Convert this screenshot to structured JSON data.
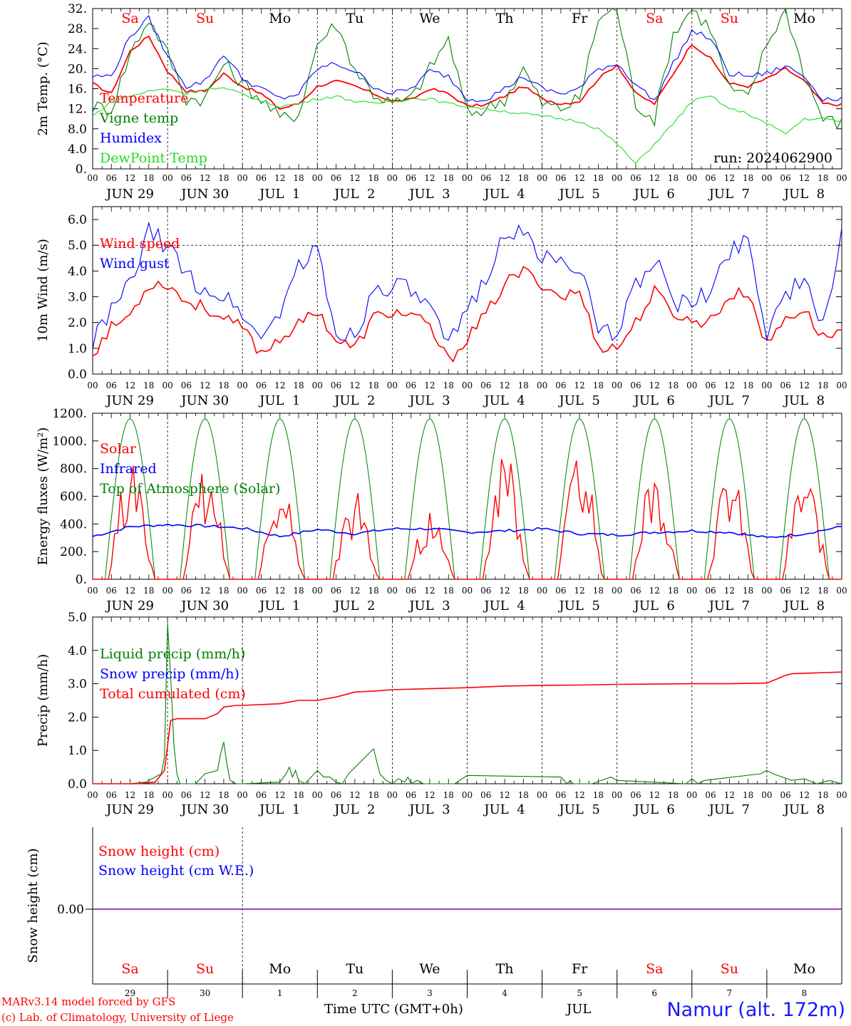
{
  "run_label": "run: 2024062900",
  "days": [
    {
      "abbr": "Sa",
      "weekend": true,
      "date_label": "JUN 29",
      "num": "29"
    },
    {
      "abbr": "Su",
      "weekend": true,
      "date_label": "JUN 30",
      "num": "30"
    },
    {
      "abbr": "Mo",
      "weekend": false,
      "date_label": "JUL  1",
      "num": "1"
    },
    {
      "abbr": "Tu",
      "weekend": false,
      "date_label": "JUL  2",
      "num": "2"
    },
    {
      "abbr": "We",
      "weekend": false,
      "date_label": "JUL  3",
      "num": "3"
    },
    {
      "abbr": "Th",
      "weekend": false,
      "date_label": "JUL  4",
      "num": "4"
    },
    {
      "abbr": "Fr",
      "weekend": false,
      "date_label": "JUL  5",
      "num": "5"
    },
    {
      "abbr": "Sa",
      "weekend": true,
      "date_label": "JUL  6",
      "num": "6"
    },
    {
      "abbr": "Su",
      "weekend": true,
      "date_label": "JUL  7",
      "num": "7"
    },
    {
      "abbr": "Mo",
      "weekend": false,
      "date_label": "JUL  8",
      "num": "8"
    }
  ],
  "hour_ticks": [
    "00",
    "06",
    "12",
    "18"
  ],
  "last_hour_tick": "00",
  "x_axis_month": "JUL",
  "x_axis_title": "Time UTC (GMT+0h)",
  "credit_line_1": "MARv3.14 model forced by GFS",
  "credit_line_2": "(c) Lab. of Climatology, University of Liege",
  "station_label": "Namur (alt. 172m)",
  "colors": {
    "red": "#ff0000",
    "green": "#008000",
    "blue": "#0000ff",
    "lightgreen": "#22dd22",
    "purple": "#8000a0",
    "weekend": "#ff0000"
  },
  "chart_data": [
    {
      "id": "temp",
      "type": "line",
      "ylabel": "2m Temp. (°C)",
      "ylim": [
        0,
        32
      ],
      "yticks": [
        0,
        4,
        8,
        12,
        16,
        20,
        24,
        28,
        32
      ],
      "ytick_labels": [
        "0.",
        "4.0",
        "8.0",
        "12.",
        "16.",
        "20.",
        "24.",
        "28.",
        "32."
      ],
      "x_hours": [
        0,
        6,
        12,
        18,
        24,
        30,
        36,
        42,
        48,
        54,
        60,
        66,
        72,
        78,
        84,
        90,
        96,
        102,
        108,
        114,
        120,
        126,
        132,
        138,
        144,
        150,
        156,
        162,
        168,
        174,
        180,
        186,
        192,
        198,
        204,
        210,
        216,
        222,
        228,
        234,
        240
      ],
      "series": [
        {
          "name": "Temperature",
          "color": "#ff0000",
          "values": [
            17,
            15,
            23.5,
            26.5,
            19.5,
            15.5,
            15.5,
            19,
            16.5,
            15,
            12,
            13,
            16.5,
            17.5,
            16.5,
            15,
            13.5,
            13.8,
            16,
            15,
            12.5,
            12.8,
            14.5,
            16.5,
            14,
            13,
            13.5,
            18,
            20.8,
            15,
            13,
            19,
            25,
            22,
            17,
            16.5,
            18,
            20,
            17.5,
            13,
            12.8
          ]
        },
        {
          "name": "Vigne temp",
          "color": "#008000",
          "values": [
            12.5,
            12,
            23,
            30,
            23,
            14,
            14,
            21,
            17,
            14,
            10,
            11,
            25,
            29,
            20,
            15,
            13,
            14,
            20,
            26,
            11,
            12,
            14,
            20,
            13,
            12,
            14,
            30,
            32,
            13,
            10,
            27,
            32,
            28,
            16,
            14,
            25,
            32,
            19,
            10,
            9
          ]
        },
        {
          "name": "Humidex",
          "color": "#0000ff",
          "values": [
            18.5,
            18.5,
            26.5,
            30,
            22.5,
            16.5,
            17.5,
            23,
            18,
            16,
            14,
            15,
            20,
            21,
            19.5,
            16.5,
            15,
            16,
            19.5,
            18.5,
            14,
            14,
            16,
            18.5,
            16,
            15,
            16,
            20,
            21,
            17,
            13.5,
            21,
            27.5,
            26,
            19,
            18.5,
            19,
            20.5,
            18.5,
            14,
            14
          ]
        },
        {
          "name": "DewPoint Temp",
          "color": "#22dd22",
          "values": [
            10.5,
            13.5,
            14.5,
            15.5,
            16,
            15,
            16,
            16,
            15,
            13.5,
            12.5,
            13,
            14,
            14.5,
            13.5,
            13,
            13.5,
            14,
            14,
            13,
            12.5,
            12,
            11.5,
            11,
            10.5,
            10,
            9.5,
            8,
            5,
            1,
            5,
            9,
            13.5,
            14.5,
            12,
            11,
            9,
            7,
            10,
            10,
            9.5
          ]
        }
      ]
    },
    {
      "id": "wind",
      "type": "line",
      "ylabel": "10m Wind (m/s)",
      "ylim": [
        0,
        6.5
      ],
      "yticks": [
        0,
        1,
        2,
        3,
        4,
        5,
        6
      ],
      "ytick_labels": [
        "0.0",
        "1.0",
        "2.0",
        "3.0",
        "4.0",
        "5.0",
        "6.0"
      ],
      "reference_line": 5,
      "x_hours": [
        0,
        6,
        12,
        18,
        24,
        30,
        36,
        42,
        48,
        54,
        60,
        66,
        72,
        78,
        84,
        90,
        96,
        102,
        108,
        114,
        120,
        126,
        132,
        138,
        144,
        150,
        156,
        162,
        168,
        174,
        180,
        186,
        192,
        198,
        204,
        210,
        216,
        222,
        228,
        234,
        240
      ],
      "series": [
        {
          "name": "Wind speed",
          "color": "#ff0000",
          "values": [
            0.8,
            1.8,
            2.3,
            3.5,
            3.5,
            2.8,
            2.6,
            2.1,
            1.8,
            0.8,
            1.4,
            1.9,
            2.5,
            1.3,
            1.0,
            2.2,
            2.4,
            2.3,
            1.8,
            0.5,
            1.4,
            2.3,
            3.5,
            4.0,
            3.5,
            3.0,
            3.2,
            1.1,
            1.0,
            2.0,
            3.2,
            2.4,
            2.0,
            2.1,
            3.0,
            3.2,
            1.1,
            2.2,
            2.5,
            1.4,
            1.7
          ]
        },
        {
          "name": "Wind gust",
          "color": "#0000ff",
          "values": [
            1.3,
            2.4,
            3.5,
            5.5,
            5.0,
            3.8,
            3.3,
            3.0,
            2.4,
            1.3,
            2.5,
            4.2,
            4.8,
            1.5,
            1.6,
            3.2,
            3.5,
            3.2,
            2.5,
            1.0,
            2.5,
            3.8,
            5.5,
            5.4,
            4.6,
            4.3,
            4.3,
            1.5,
            1.6,
            3.5,
            4.5,
            2.8,
            2.7,
            3.2,
            4.8,
            5.3,
            1.6,
            3.2,
            3.5,
            1.8,
            5.6
          ]
        }
      ]
    },
    {
      "id": "energy",
      "type": "line",
      "ylabel": "Energy fluxes (W/m²)",
      "ylim": [
        0,
        1200
      ],
      "yticks": [
        0,
        200,
        400,
        600,
        800,
        1000,
        1200
      ],
      "ytick_labels": [
        "0.",
        "200.",
        "400.",
        "600.",
        "800.",
        "1000.",
        "1200."
      ],
      "toa_solar": {
        "name": "Top of Atmosphere (Solar)",
        "color": "#008000",
        "peak": 1160,
        "sunrise_hour": 4.0,
        "sunset_hour": 20.0
      },
      "daily_solar_peaks": [
        830,
        790,
        660,
        630,
        480,
        900,
        890,
        800,
        790,
        780
      ],
      "series": [
        {
          "name": "Solar",
          "color": "#ff0000",
          "values": []
        },
        {
          "name": "Infrared",
          "color": "#0000ff",
          "x_hours": [
            0,
            12,
            24,
            36,
            48,
            60,
            72,
            84,
            96,
            108,
            120,
            132,
            144,
            156,
            168,
            180,
            192,
            204,
            216,
            228,
            240
          ],
          "values": [
            310,
            380,
            395,
            385,
            370,
            310,
            360,
            330,
            365,
            365,
            340,
            350,
            365,
            330,
            320,
            340,
            350,
            340,
            300,
            330,
            380
          ]
        }
      ]
    },
    {
      "id": "precip",
      "type": "line",
      "ylabel": "Precip (mm/h)",
      "ylim": [
        0,
        5
      ],
      "yticks": [
        0,
        1,
        2,
        3,
        4,
        5
      ],
      "ytick_labels": [
        "0.0",
        "1.0",
        "2.0",
        "3.0",
        "4.0",
        "5.0"
      ],
      "series": [
        {
          "name": "Liquid precip (mm/h)",
          "color": "#008000",
          "x_hours": [
            0,
            12,
            17,
            20,
            22,
            23,
            24,
            25,
            26,
            27,
            28,
            30,
            33,
            36,
            40,
            41,
            42,
            43,
            44,
            46,
            48,
            60,
            62,
            63,
            64,
            65,
            66,
            68,
            72,
            74,
            76,
            78,
            80,
            82,
            90,
            92,
            94,
            96,
            98,
            100,
            101,
            102,
            104,
            106,
            112,
            116,
            120,
            150,
            152,
            153,
            154,
            156,
            160,
            166,
            168,
            190,
            192,
            194,
            196,
            214,
            216,
            218,
            224,
            228,
            232,
            236,
            240
          ],
          "values": [
            0,
            0,
            0.05,
            0.2,
            0.3,
            0.8,
            4.8,
            3.2,
            1.2,
            0.3,
            0,
            0,
            0,
            0.3,
            0.4,
            0.9,
            1.25,
            0.6,
            0.1,
            0,
            0,
            0.05,
            0.3,
            0.5,
            0.2,
            0.4,
            0.1,
            0,
            0.4,
            0.2,
            0.2,
            0.05,
            0,
            0.3,
            1.05,
            0.3,
            0.1,
            0,
            0.15,
            0.05,
            0.2,
            0,
            0.1,
            0,
            0,
            0,
            0.25,
            0.2,
            0,
            0.1,
            0,
            0,
            0,
            0.2,
            0.1,
            0,
            0.15,
            0,
            0.1,
            0.3,
            0.4,
            0.3,
            0.1,
            0.15,
            0,
            0.1,
            0
          ]
        },
        {
          "name": "Snow precip (mm/h)",
          "color": "#0000ff",
          "values": []
        },
        {
          "name": "Total cumulated (cm)",
          "color": "#ff0000",
          "x_hours": [
            0,
            14,
            20,
            23,
            25,
            27,
            30,
            36,
            40,
            42,
            46,
            48,
            60,
            66,
            72,
            78,
            84,
            90,
            96,
            108,
            120,
            132,
            144,
            156,
            168,
            180,
            192,
            204,
            216,
            222,
            224,
            240
          ],
          "values": [
            0,
            0,
            0.05,
            0.4,
            1.9,
            1.95,
            1.95,
            1.95,
            2.1,
            2.3,
            2.35,
            2.35,
            2.4,
            2.5,
            2.5,
            2.6,
            2.75,
            2.78,
            2.82,
            2.85,
            2.88,
            2.93,
            2.95,
            2.96,
            2.98,
            2.99,
            3.0,
            3.0,
            3.02,
            3.25,
            3.3,
            3.35
          ]
        }
      ]
    },
    {
      "id": "snow",
      "type": "line",
      "ylabel": "Snow height (cm)",
      "yticks": [
        0
      ],
      "ytick_labels": [
        "0.00"
      ],
      "series": [
        {
          "name": "Snow height (cm)",
          "color": "#ff0000",
          "values": [
            0,
            0
          ]
        },
        {
          "name": "Snow height (cm W.E.)",
          "color": "#0000ff",
          "values": [
            0,
            0
          ]
        }
      ]
    }
  ]
}
